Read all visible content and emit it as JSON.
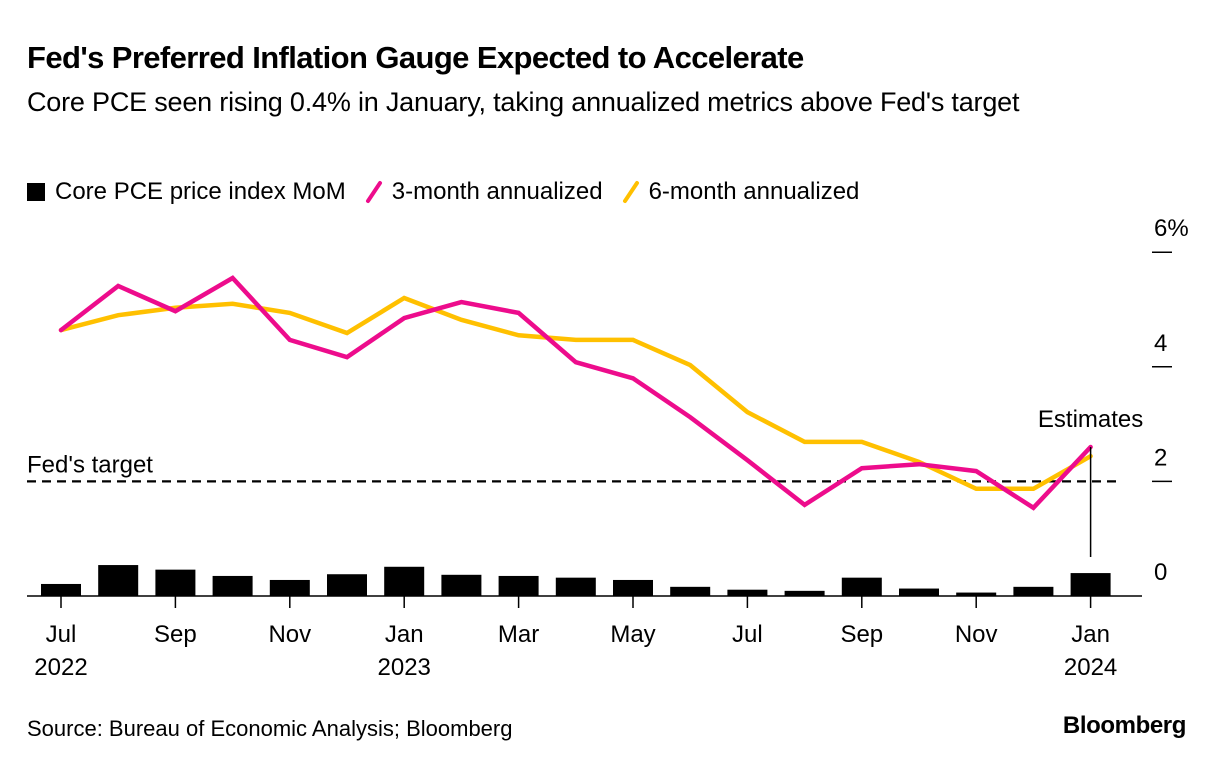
{
  "header": {
    "title": "Fed's Preferred Inflation Gauge Expected to Accelerate",
    "subtitle": "Core PCE seen rising 0.4% in January, taking annualized metrics above Fed's target"
  },
  "legend": [
    {
      "label": "Core PCE price index MoM",
      "type": "bar",
      "color": "#000000"
    },
    {
      "label": "3-month annualized",
      "type": "line",
      "color": "#ED0C8C"
    },
    {
      "label": "6-month annualized",
      "type": "line",
      "color": "#FFC000"
    }
  ],
  "footer": {
    "source": "Source: Bureau of Economic Analysis; Bloomberg",
    "brand": "Bloomberg"
  },
  "chart_data": {
    "type": "bar+line",
    "title": "Fed's Preferred Inflation Gauge Expected to Accelerate",
    "subtitle": "Core PCE seen rising 0.4% in January, taking annualized metrics above Fed's target",
    "x": [
      "2022-07",
      "2022-08",
      "2022-09",
      "2022-10",
      "2022-11",
      "2022-12",
      "2023-01",
      "2023-02",
      "2023-03",
      "2023-04",
      "2023-05",
      "2023-06",
      "2023-07",
      "2023-08",
      "2023-09",
      "2023-10",
      "2023-11",
      "2023-12",
      "2024-01"
    ],
    "x_tick_labels": [
      {
        "index": 0,
        "month": "Jul",
        "year": "2022"
      },
      {
        "index": 2,
        "month": "Sep",
        "year": ""
      },
      {
        "index": 4,
        "month": "Nov",
        "year": ""
      },
      {
        "index": 6,
        "month": "Jan",
        "year": "2023"
      },
      {
        "index": 8,
        "month": "Mar",
        "year": ""
      },
      {
        "index": 10,
        "month": "May",
        "year": ""
      },
      {
        "index": 12,
        "month": "Jul",
        "year": ""
      },
      {
        "index": 14,
        "month": "Sep",
        "year": ""
      },
      {
        "index": 16,
        "month": "Nov",
        "year": ""
      },
      {
        "index": 18,
        "month": "Jan",
        "year": "2024"
      }
    ],
    "series": [
      {
        "name": "Core PCE price index MoM",
        "type": "bar",
        "color": "#000000",
        "values": [
          0.21,
          0.54,
          0.46,
          0.35,
          0.28,
          0.38,
          0.51,
          0.37,
          0.35,
          0.32,
          0.28,
          0.16,
          0.11,
          0.09,
          0.32,
          0.13,
          0.06,
          0.16,
          0.4
        ]
      },
      {
        "name": "3-month annualized",
        "type": "line",
        "color": "#ED0C8C",
        "values": [
          4.64,
          5.41,
          4.97,
          5.55,
          4.47,
          4.17,
          4.85,
          5.13,
          4.94,
          4.08,
          3.8,
          3.12,
          2.37,
          1.59,
          2.23,
          2.3,
          2.18,
          1.54,
          2.6
        ]
      },
      {
        "name": "6-month annualized",
        "type": "line",
        "color": "#FFC000",
        "values": [
          4.64,
          4.9,
          5.03,
          5.1,
          4.94,
          4.59,
          5.2,
          4.82,
          4.55,
          4.47,
          4.47,
          4.03,
          3.21,
          2.69,
          2.69,
          2.34,
          1.87,
          1.87,
          2.44
        ]
      }
    ],
    "y_ticks": [
      {
        "value": 0,
        "label": "0"
      },
      {
        "value": 2,
        "label": "2"
      },
      {
        "value": 4,
        "label": "4"
      },
      {
        "value": 6,
        "label": "6%"
      }
    ],
    "ylim": [
      0,
      6
    ],
    "reference_line": {
      "value": 2,
      "label": "Fed's target",
      "style": "dashed"
    },
    "annotation": {
      "label": "Estimates",
      "index": 18
    },
    "grid": false,
    "legend_position": "top-left",
    "y_axis_position": "right"
  }
}
